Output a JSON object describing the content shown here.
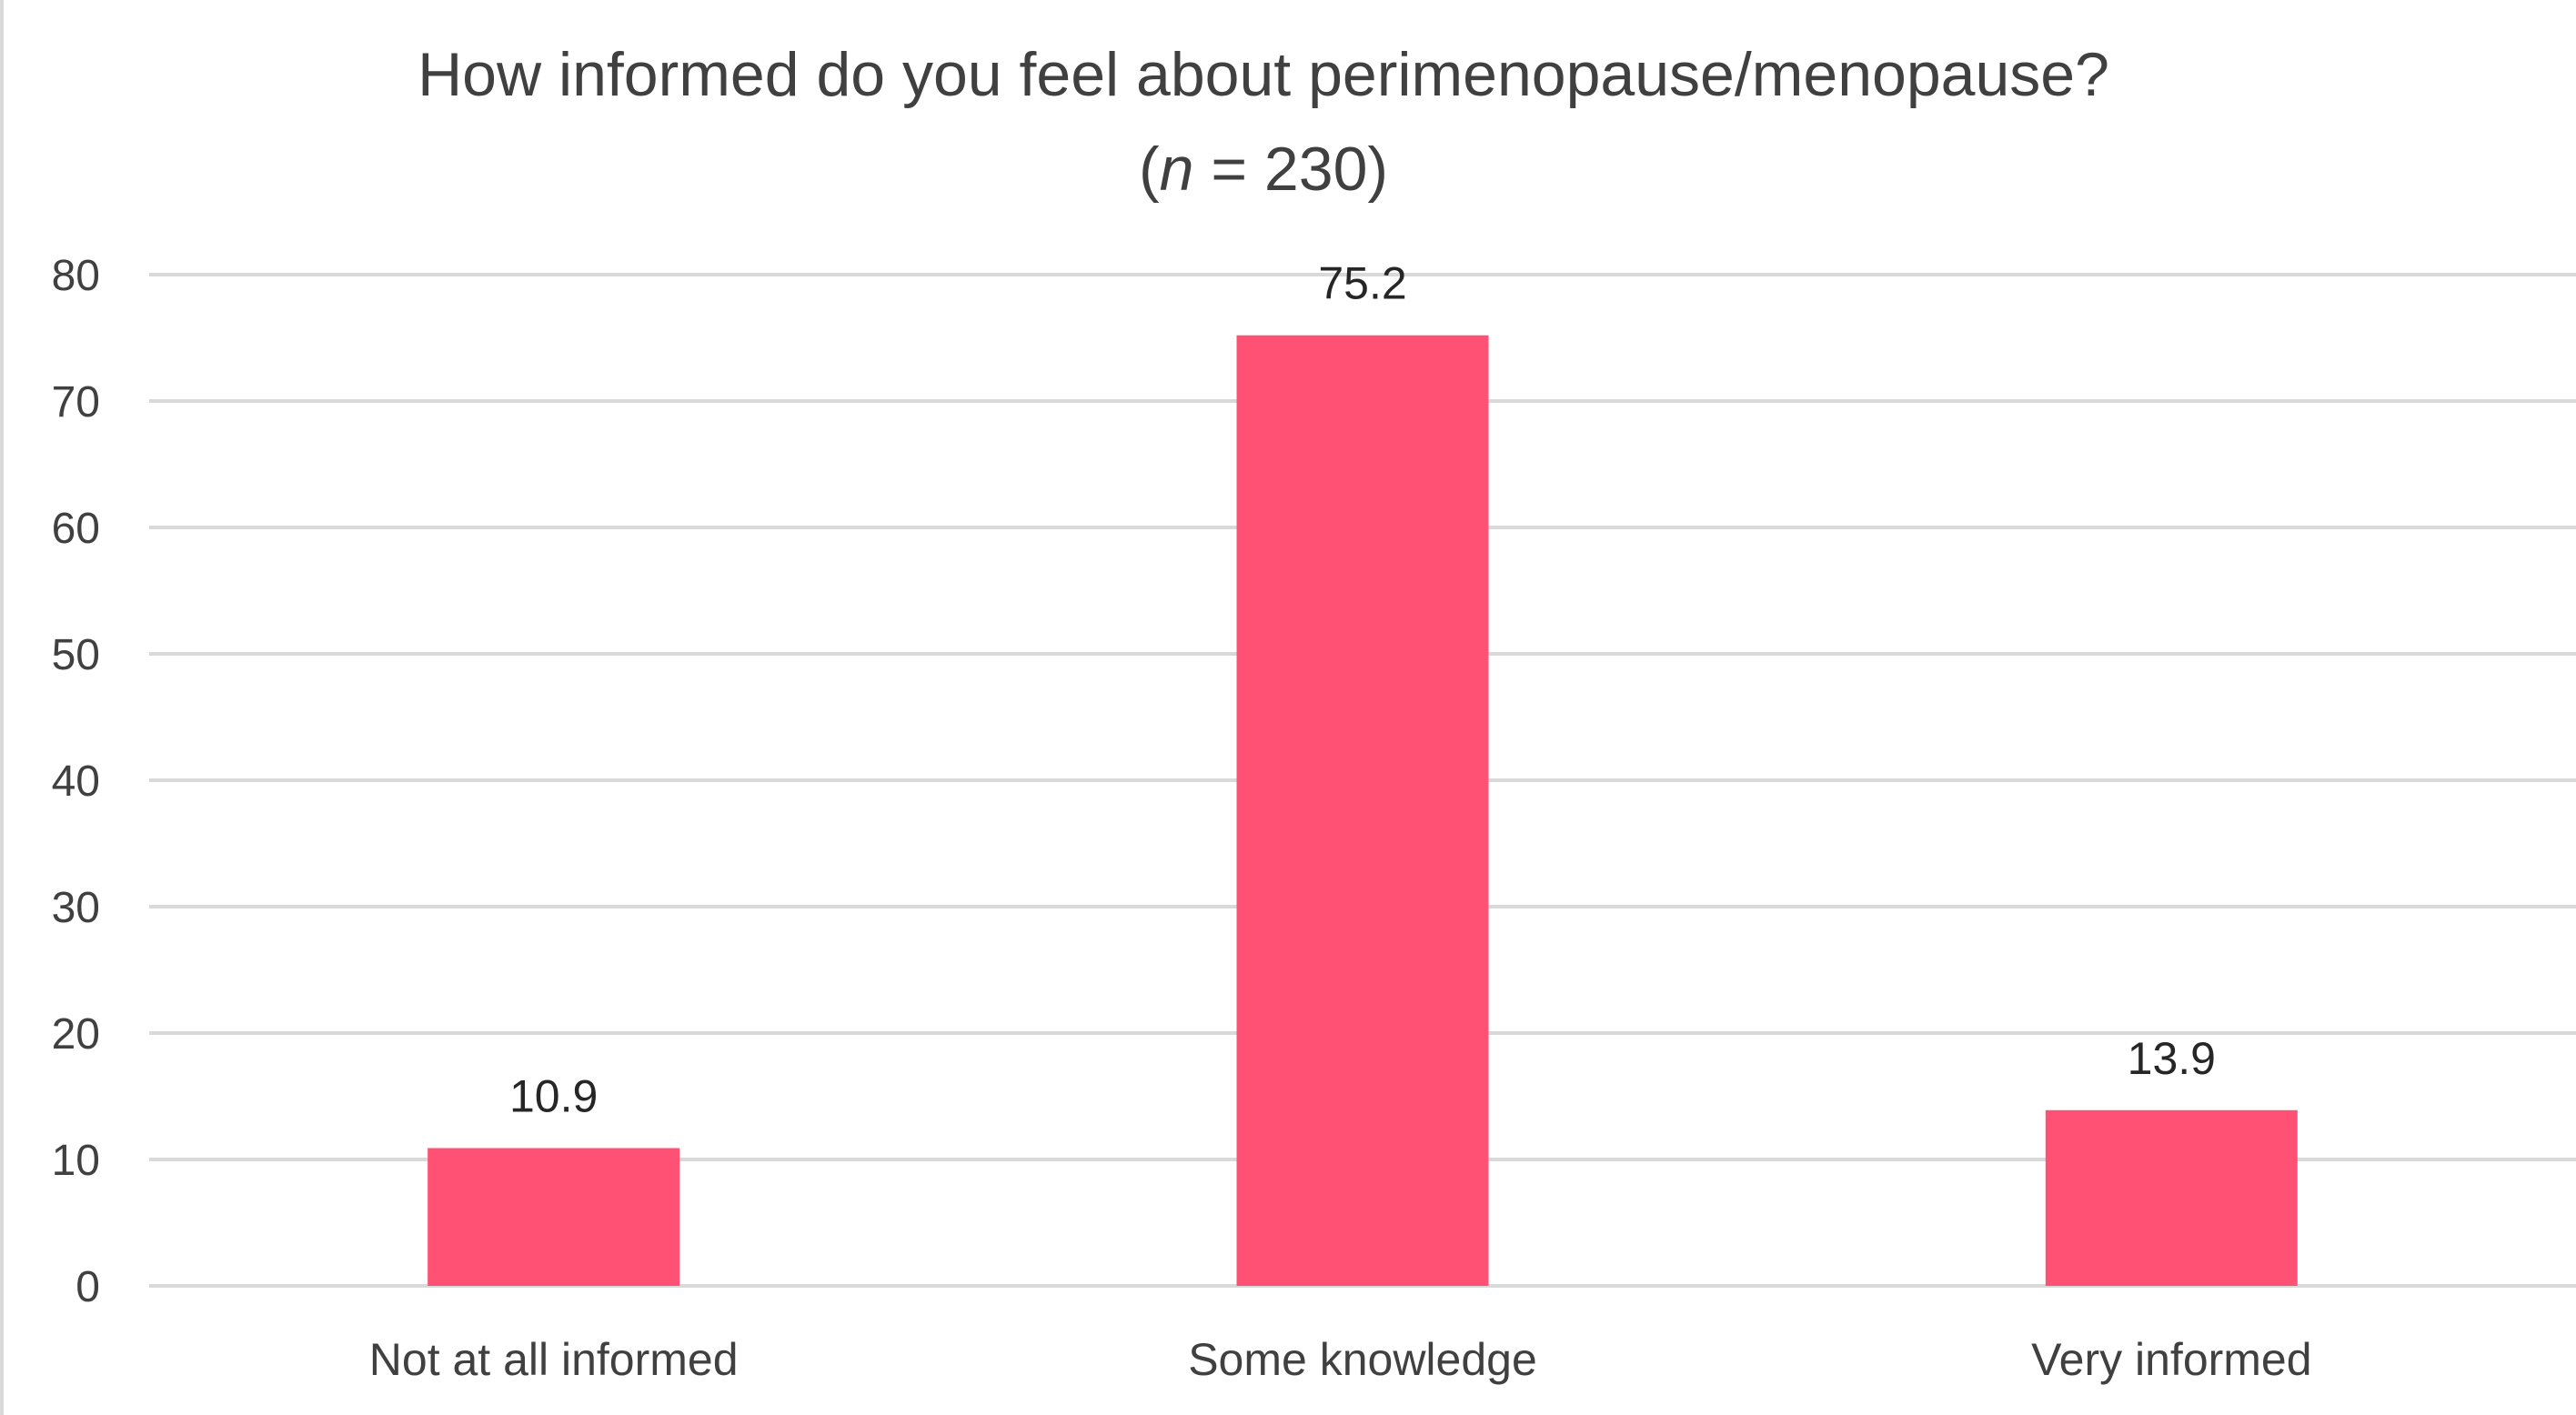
{
  "chart_data": {
    "type": "bar",
    "title": "How informed do you feel about perimenopause/menopause?",
    "subtitle_prefix": "(",
    "subtitle_italic": "n",
    "subtitle_suffix": " = 230)",
    "categories": [
      "Not at all informed",
      "Some knowledge",
      "Very informed"
    ],
    "values": [
      10.9,
      75.2,
      13.9
    ],
    "data_labels": [
      "10.9",
      "75.2",
      "13.9"
    ],
    "ylim": [
      0,
      80
    ],
    "yticks": [
      0,
      10,
      20,
      30,
      40,
      50,
      60,
      70,
      80
    ],
    "ytick_labels": [
      "0",
      "10",
      "20",
      "30",
      "40",
      "50",
      "60",
      "70",
      "80"
    ],
    "xlabel": "",
    "ylabel": "",
    "grid": true,
    "legend": "none",
    "colors": {
      "bar": "#ff5173",
      "grid": "#d9d9d9",
      "axis_text": "#404040",
      "label_text": "#262626"
    }
  }
}
